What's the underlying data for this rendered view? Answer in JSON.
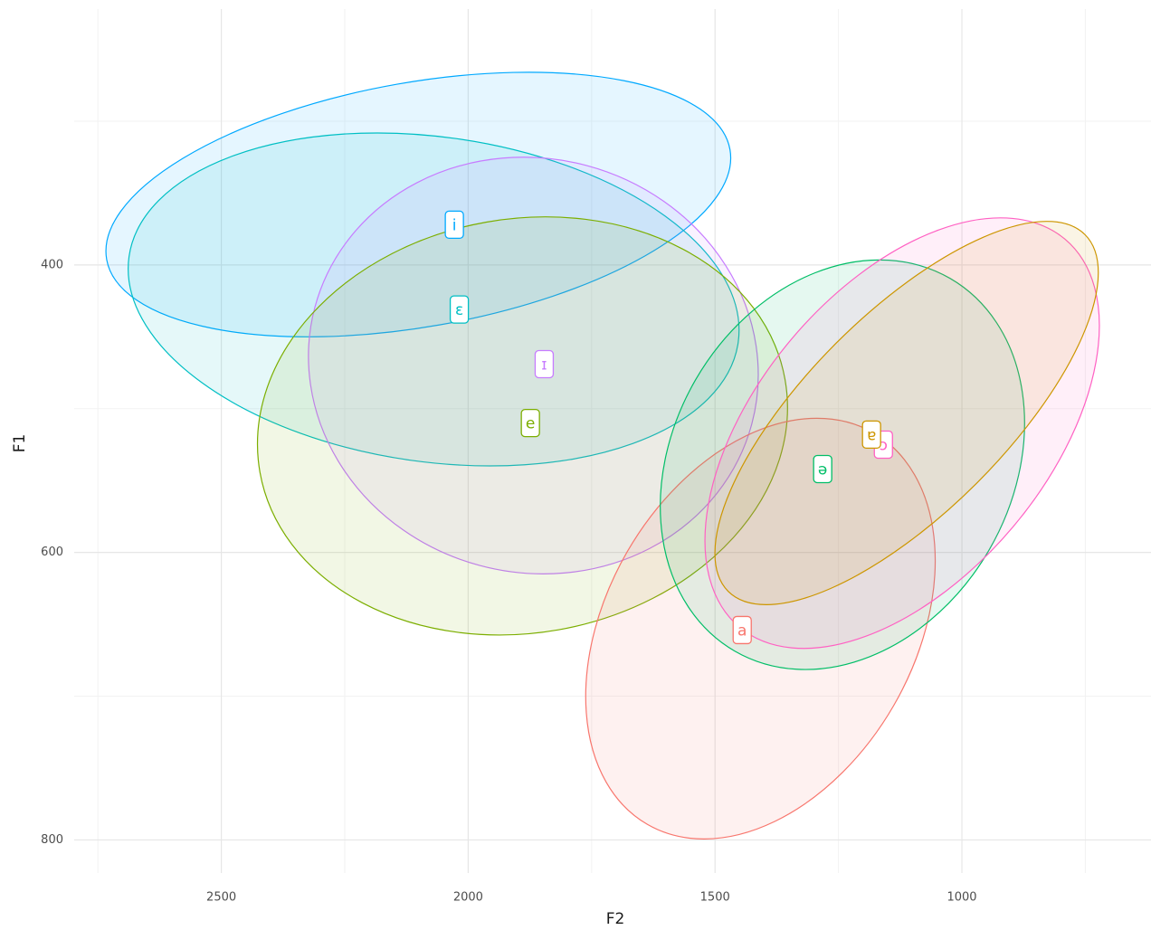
{
  "chart_data": {
    "type": "ellipse-scatter",
    "x_label": "F2",
    "y_label": "F1",
    "xlim": [
      617,
      2798
    ],
    "x_reversed": true,
    "ylim": [
      222,
      823
    ],
    "y_reversed": true,
    "xticks": [
      2500,
      2000,
      1500,
      1000
    ],
    "xminorticks": [
      2750,
      2250,
      1750,
      1250,
      750
    ],
    "yticks": [
      400,
      600,
      800
    ],
    "yminorticks": [
      300,
      500,
      700
    ],
    "grid": true,
    "series": [
      {
        "name": "i",
        "color": "#00A9FF",
        "x": 2028,
        "y": 372,
        "ellipse": {
          "cx": 2101,
          "cy": 358,
          "rx": 641,
          "ry": 85,
          "angle": -10
        }
      },
      {
        "name": "ɛ",
        "color": "#00BFC4",
        "x": 2018,
        "y": 431,
        "ellipse": {
          "cx": 2070,
          "cy": 424,
          "rx": 623,
          "ry": 113,
          "angle": 8
        }
      },
      {
        "name": "ɪ",
        "color": "#C77CFF",
        "x": 1846,
        "y": 469,
        "ellipse": {
          "cx": 1868,
          "cy": 470,
          "rx": 458,
          "ry": 144,
          "angle": 15
        }
      },
      {
        "name": "e",
        "color": "#7CAE00",
        "x": 1874,
        "y": 510,
        "ellipse": {
          "cx": 1890,
          "cy": 512,
          "rx": 540,
          "ry": 144,
          "angle": -10
        }
      },
      {
        "name": "a",
        "color": "#F8766D",
        "x": 1445,
        "y": 654,
        "ellipse": {
          "cx": 1408,
          "cy": 653,
          "rx": 458,
          "ry": 107,
          "angle": -60
        }
      },
      {
        "name": "ə",
        "color": "#00BE67",
        "x": 1282,
        "y": 542,
        "ellipse": {
          "cx": 1242,
          "cy": 539,
          "rx": 436,
          "ry": 118,
          "angle": -60
        }
      },
      {
        "name": "ɔ",
        "color": "#FF61C3",
        "x": 1159,
        "y": 525,
        "ellipse": {
          "cx": 1121,
          "cy": 517,
          "rx": 513,
          "ry": 101,
          "angle": -50
        }
      },
      {
        "name": "ɐ",
        "color": "#CD9600",
        "x": 1183,
        "y": 518,
        "ellipse": {
          "cx": 1112,
          "cy": 503,
          "rx": 511,
          "ry": 69,
          "angle": -45
        }
      }
    ]
  }
}
